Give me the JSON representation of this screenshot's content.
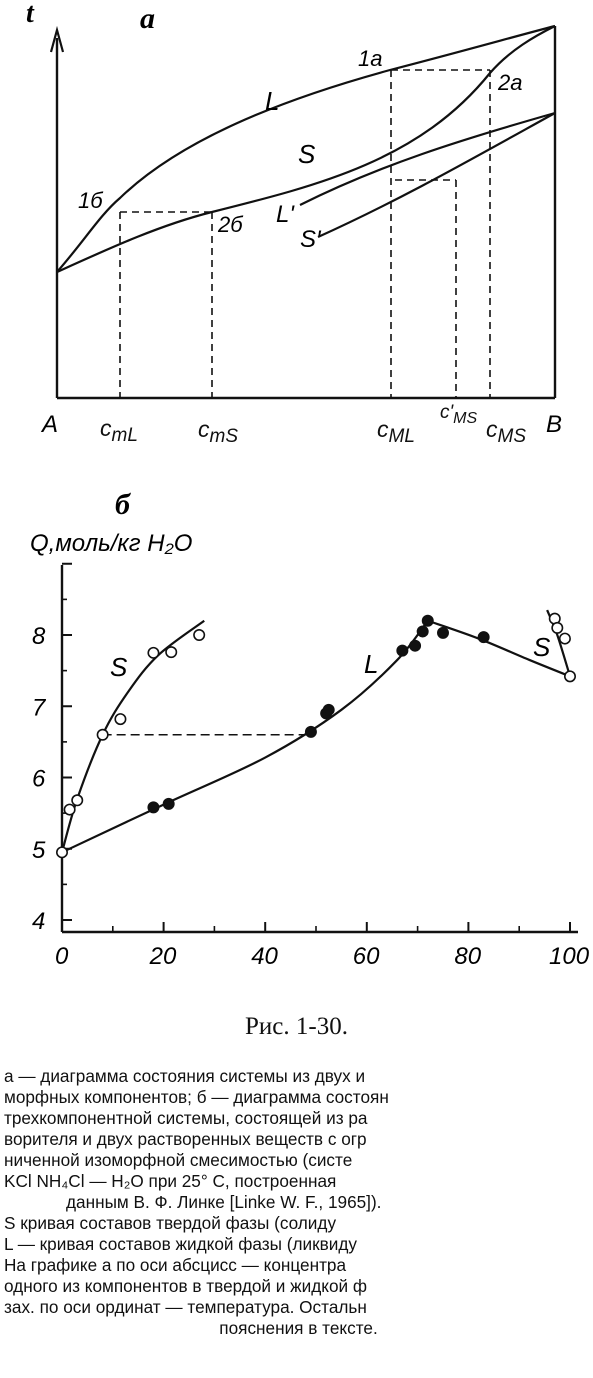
{
  "panel_a": {
    "label": "а",
    "axis_t": "t",
    "corner_a": "A",
    "corner_b": "B",
    "curve_labels": [
      "L",
      "S",
      "L'",
      "S'"
    ],
    "point_labels": [
      "1а",
      "2а",
      "1б",
      "2б"
    ],
    "x_ticks": [
      "c_mL",
      "c_mS",
      "c_ML",
      "c'_MS",
      "c_MS"
    ]
  },
  "panel_b": {
    "label": "б",
    "ylabel": "Q,моль/кг H₂O",
    "curve_labels": [
      "S",
      "L",
      "S"
    ]
  },
  "chart_data": {
    "type": "scatter",
    "xlim": [
      0,
      100
    ],
    "ylim": [
      4,
      9
    ],
    "x_ticks": [
      "0",
      "20",
      "40",
      "60",
      "80",
      "100"
    ],
    "y_ticks": [
      "4",
      "5",
      "6",
      "7",
      "8"
    ],
    "series": [
      {
        "name": "S",
        "marker": "open",
        "points": [
          [
            0,
            4.95
          ],
          [
            1.5,
            5.55
          ],
          [
            3,
            5.68
          ],
          [
            8,
            6.6
          ],
          [
            11.5,
            6.82
          ],
          [
            18,
            7.75
          ],
          [
            21.5,
            7.76
          ],
          [
            27,
            8.0
          ],
          [
            97,
            8.23
          ],
          [
            97.5,
            8.1
          ],
          [
            99,
            7.95
          ],
          [
            100,
            7.42
          ]
        ]
      },
      {
        "name": "L",
        "marker": "filled",
        "points": [
          [
            18,
            5.58
          ],
          [
            21,
            5.63
          ],
          [
            49,
            6.64
          ],
          [
            52,
            6.9
          ],
          [
            52.5,
            6.95
          ],
          [
            67,
            7.78
          ],
          [
            69.5,
            7.85
          ],
          [
            71,
            8.05
          ],
          [
            72,
            8.2
          ],
          [
            75,
            8.03
          ],
          [
            83,
            7.97
          ]
        ]
      }
    ],
    "tie_lines": [
      [
        [
          8,
          6.6
        ],
        [
          49,
          6.6
        ]
      ]
    ]
  },
  "caption": {
    "title": "Рис. 1-30.",
    "lines": [
      "а — диаграмма состояния системы из двух и",
      "морфных компонентов; б — диаграмма состоян",
      "трехкомпонентной системы, состоящей из ра",
      "ворителя и двух растворенных веществ с огр",
      "ниченной изоморфной смесимостью (систе",
      "KCl NH₄Cl — H₂O при 25° C, построенная",
      "данным В. Ф. Линке [Linke W. F., 1965]).",
      "S кривая составов твердой фазы (солиду",
      "L — кривая составов жидкой фазы (ликвиду",
      "На графике а по оси абсцисс — концентра",
      "одного из компонентов в твердой и жидкой ф",
      "зах. по оси ординат — температура. Остальн",
      "пояснения в тексте."
    ]
  }
}
